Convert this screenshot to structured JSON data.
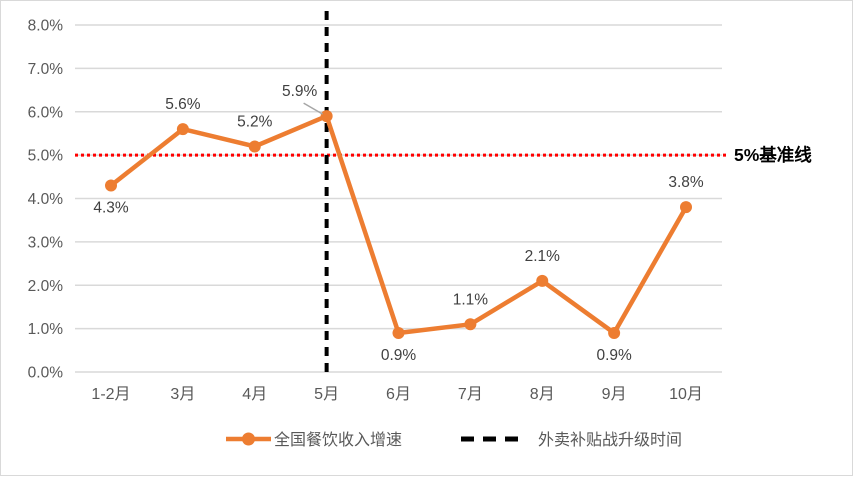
{
  "chart_data": {
    "type": "line",
    "title": "",
    "categories": [
      "1-2月",
      "3月",
      "4月",
      "5月",
      "6月",
      "7月",
      "8月",
      "9月",
      "10月"
    ],
    "series": [
      {
        "name": "全国餐饮收入增速",
        "values": [
          4.3,
          5.6,
          5.2,
          5.9,
          0.9,
          1.1,
          2.1,
          0.9,
          3.8
        ],
        "color": "#ED7D31"
      }
    ],
    "point_labels": [
      "4.3%",
      "5.6%",
      "5.2%",
      "5.9%",
      "0.9%",
      "1.1%",
      "2.1%",
      "0.9%",
      "3.8%"
    ],
    "label_placement": [
      "below",
      "above",
      "above",
      "callout",
      "below",
      "above",
      "above",
      "below",
      "above"
    ],
    "y_tick_labels": [
      "0.0%",
      "1.0%",
      "2.0%",
      "3.0%",
      "4.0%",
      "5.0%",
      "6.0%",
      "7.0%",
      "8.0%"
    ],
    "ylim": [
      0,
      8
    ],
    "y_step": 1,
    "grid": true,
    "baseline": {
      "value": 5,
      "label": "5%基准线",
      "color": "#FF0000",
      "style": "dotted"
    },
    "event_line": {
      "category": "5月",
      "label": "外卖补贴战升级时间",
      "color": "#000000",
      "style": "dashed"
    },
    "legend_position": "bottom",
    "legend": [
      {
        "label": "全国餐饮收入增速",
        "swatch": "line-with-marker",
        "color": "#ED7D31"
      },
      {
        "label": "外卖补贴战升级时间",
        "swatch": "dashed-line",
        "color": "#000000"
      }
    ],
    "colors": {
      "series": "#ED7D31",
      "baseline": "#FF0000",
      "event_line": "#000000",
      "gridline": "#D9D9D9",
      "axis_text": "#595959",
      "data_label": "#404040",
      "legend_text": "#595959",
      "baseline_label_text": "#000000",
      "callout_leader": "#A6A6A6",
      "background": "#FFFFFF",
      "border": "#D9D9D9"
    }
  }
}
